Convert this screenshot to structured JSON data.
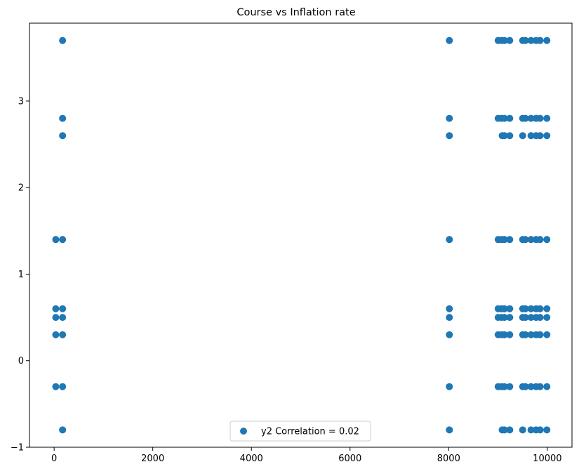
{
  "chart_data": {
    "type": "scatter",
    "title": "Course vs Inflation rate",
    "xlabel": "",
    "ylabel": "",
    "xlim": [
      -500,
      10500
    ],
    "ylim": [
      -1.0,
      3.9
    ],
    "xticks": [
      0,
      2000,
      4000,
      6000,
      8000,
      10000
    ],
    "xtick_labels": [
      "0",
      "2000",
      "4000",
      "6000",
      "8000",
      "10000"
    ],
    "yticks": [
      -1,
      0,
      1,
      2,
      3
    ],
    "ytick_labels": [
      "−1",
      "0",
      "1",
      "2",
      "3"
    ],
    "grid": false,
    "legend_position": "bottom-center",
    "color": "#1f77b4",
    "series": [
      {
        "name": "y2 Correlation = 0.02",
        "points": [
          {
            "x": 33,
            "y": 1.4
          },
          {
            "x": 33,
            "y": 0.6
          },
          {
            "x": 33,
            "y": 0.5
          },
          {
            "x": 33,
            "y": 0.3
          },
          {
            "x": 33,
            "y": -0.3
          },
          {
            "x": 171,
            "y": 3.7
          },
          {
            "x": 171,
            "y": 2.8
          },
          {
            "x": 171,
            "y": 2.6
          },
          {
            "x": 171,
            "y": 1.4
          },
          {
            "x": 171,
            "y": 0.6
          },
          {
            "x": 171,
            "y": 0.5
          },
          {
            "x": 171,
            "y": 0.3
          },
          {
            "x": 171,
            "y": -0.3
          },
          {
            "x": 171,
            "y": -0.8
          },
          {
            "x": 8014,
            "y": 3.7
          },
          {
            "x": 8014,
            "y": 2.8
          },
          {
            "x": 8014,
            "y": 2.6
          },
          {
            "x": 8014,
            "y": 1.4
          },
          {
            "x": 8014,
            "y": 0.6
          },
          {
            "x": 8014,
            "y": 0.5
          },
          {
            "x": 8014,
            "y": 0.3
          },
          {
            "x": 8014,
            "y": -0.3
          },
          {
            "x": 8014,
            "y": -0.8
          },
          {
            "x": 9003,
            "y": 3.7
          },
          {
            "x": 9003,
            "y": 2.8
          },
          {
            "x": 9003,
            "y": 1.4
          },
          {
            "x": 9003,
            "y": 0.6
          },
          {
            "x": 9003,
            "y": 0.5
          },
          {
            "x": 9003,
            "y": 0.3
          },
          {
            "x": 9003,
            "y": -0.3
          },
          {
            "x": 9070,
            "y": 3.7
          },
          {
            "x": 9070,
            "y": 2.8
          },
          {
            "x": 9070,
            "y": 1.4
          },
          {
            "x": 9070,
            "y": 0.6
          },
          {
            "x": 9070,
            "y": 0.5
          },
          {
            "x": 9070,
            "y": 0.3
          },
          {
            "x": 9070,
            "y": -0.3
          },
          {
            "x": 9085,
            "y": 2.6
          },
          {
            "x": 9085,
            "y": -0.8
          },
          {
            "x": 9130,
            "y": 3.7
          },
          {
            "x": 9130,
            "y": 2.8
          },
          {
            "x": 9130,
            "y": 2.6
          },
          {
            "x": 9130,
            "y": 1.4
          },
          {
            "x": 9130,
            "y": 0.6
          },
          {
            "x": 9130,
            "y": 0.5
          },
          {
            "x": 9130,
            "y": 0.3
          },
          {
            "x": 9130,
            "y": -0.3
          },
          {
            "x": 9130,
            "y": -0.8
          },
          {
            "x": 9238,
            "y": 3.7
          },
          {
            "x": 9238,
            "y": 2.8
          },
          {
            "x": 9238,
            "y": 2.6
          },
          {
            "x": 9238,
            "y": 1.4
          },
          {
            "x": 9238,
            "y": 0.6
          },
          {
            "x": 9238,
            "y": 0.5
          },
          {
            "x": 9238,
            "y": 0.3
          },
          {
            "x": 9238,
            "y": -0.3
          },
          {
            "x": 9238,
            "y": -0.8
          },
          {
            "x": 9500,
            "y": 3.7
          },
          {
            "x": 9500,
            "y": 2.8
          },
          {
            "x": 9500,
            "y": 2.6
          },
          {
            "x": 9500,
            "y": 1.4
          },
          {
            "x": 9500,
            "y": 0.6
          },
          {
            "x": 9500,
            "y": 0.5
          },
          {
            "x": 9500,
            "y": 0.3
          },
          {
            "x": 9500,
            "y": -0.3
          },
          {
            "x": 9500,
            "y": -0.8
          },
          {
            "x": 9556,
            "y": 3.7
          },
          {
            "x": 9556,
            "y": 2.8
          },
          {
            "x": 9556,
            "y": 1.4
          },
          {
            "x": 9556,
            "y": 0.6
          },
          {
            "x": 9556,
            "y": 0.5
          },
          {
            "x": 9556,
            "y": 0.3
          },
          {
            "x": 9556,
            "y": -0.3
          },
          {
            "x": 9670,
            "y": 3.7
          },
          {
            "x": 9670,
            "y": 2.8
          },
          {
            "x": 9670,
            "y": 2.6
          },
          {
            "x": 9670,
            "y": 1.4
          },
          {
            "x": 9670,
            "y": 0.6
          },
          {
            "x": 9670,
            "y": 0.5
          },
          {
            "x": 9670,
            "y": 0.3
          },
          {
            "x": 9670,
            "y": -0.3
          },
          {
            "x": 9670,
            "y": -0.8
          },
          {
            "x": 9773,
            "y": 3.7
          },
          {
            "x": 9773,
            "y": 2.8
          },
          {
            "x": 9773,
            "y": 2.6
          },
          {
            "x": 9773,
            "y": 1.4
          },
          {
            "x": 9773,
            "y": 0.6
          },
          {
            "x": 9773,
            "y": 0.5
          },
          {
            "x": 9773,
            "y": 0.3
          },
          {
            "x": 9773,
            "y": -0.3
          },
          {
            "x": 9773,
            "y": -0.8
          },
          {
            "x": 9853,
            "y": 3.7
          },
          {
            "x": 9853,
            "y": 2.8
          },
          {
            "x": 9853,
            "y": 2.6
          },
          {
            "x": 9853,
            "y": 1.4
          },
          {
            "x": 9853,
            "y": 0.6
          },
          {
            "x": 9853,
            "y": 0.5
          },
          {
            "x": 9853,
            "y": 0.3
          },
          {
            "x": 9853,
            "y": -0.3
          },
          {
            "x": 9853,
            "y": -0.8
          },
          {
            "x": 9991,
            "y": 3.7
          },
          {
            "x": 9991,
            "y": 2.8
          },
          {
            "x": 9991,
            "y": 2.6
          },
          {
            "x": 9991,
            "y": 1.4
          },
          {
            "x": 9991,
            "y": 0.6
          },
          {
            "x": 9991,
            "y": 0.5
          },
          {
            "x": 9991,
            "y": 0.3
          },
          {
            "x": 9991,
            "y": -0.3
          },
          {
            "x": 9991,
            "y": -0.8
          }
        ]
      }
    ]
  }
}
